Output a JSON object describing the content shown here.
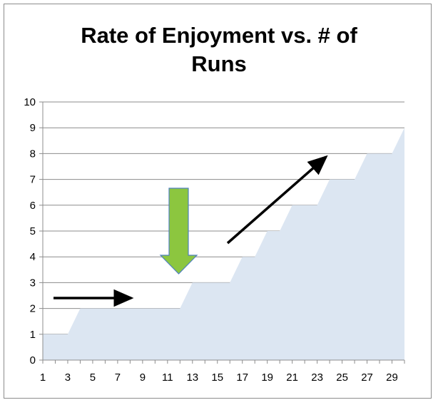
{
  "chart_data": {
    "type": "area",
    "title_lines": [
      "Rate of Enjoyment vs. # of",
      "Runs"
    ],
    "xlabel": "",
    "ylabel": "",
    "x": [
      1,
      2,
      3,
      4,
      5,
      6,
      7,
      8,
      9,
      10,
      11,
      12,
      13,
      14,
      15,
      16,
      17,
      18,
      19,
      20,
      21,
      22,
      23,
      24,
      25,
      26,
      27,
      28,
      29,
      30
    ],
    "x_tick_labels": [
      "1",
      "3",
      "5",
      "7",
      "9",
      "11",
      "13",
      "15",
      "17",
      "19",
      "21",
      "23",
      "25",
      "27",
      "29"
    ],
    "y_tick_labels": [
      "0",
      "1",
      "2",
      "3",
      "4",
      "5",
      "6",
      "7",
      "8",
      "9",
      "10"
    ],
    "series": [
      {
        "values": [
          1,
          1,
          1,
          2,
          2,
          2,
          2,
          2,
          2,
          2,
          2,
          2,
          3,
          3,
          3,
          3,
          4,
          4,
          5,
          5,
          6,
          6,
          6,
          7,
          7,
          7,
          8,
          8,
          8,
          9
        ],
        "color": "#dce6f2"
      }
    ],
    "ylim": [
      0,
      10
    ],
    "grid": true,
    "legend": "none",
    "annotations": [
      {
        "type": "arrow",
        "color": "#000000",
        "from": [
          1.8,
          2.4
        ],
        "to": [
          8.4,
          2.4
        ]
      },
      {
        "type": "block-arrow",
        "color": "#8cc63f",
        "outline": "#4f81bd",
        "direction": "down",
        "from_y": 6.7,
        "to_y": 3.3,
        "x": 12
      }
    ]
  }
}
